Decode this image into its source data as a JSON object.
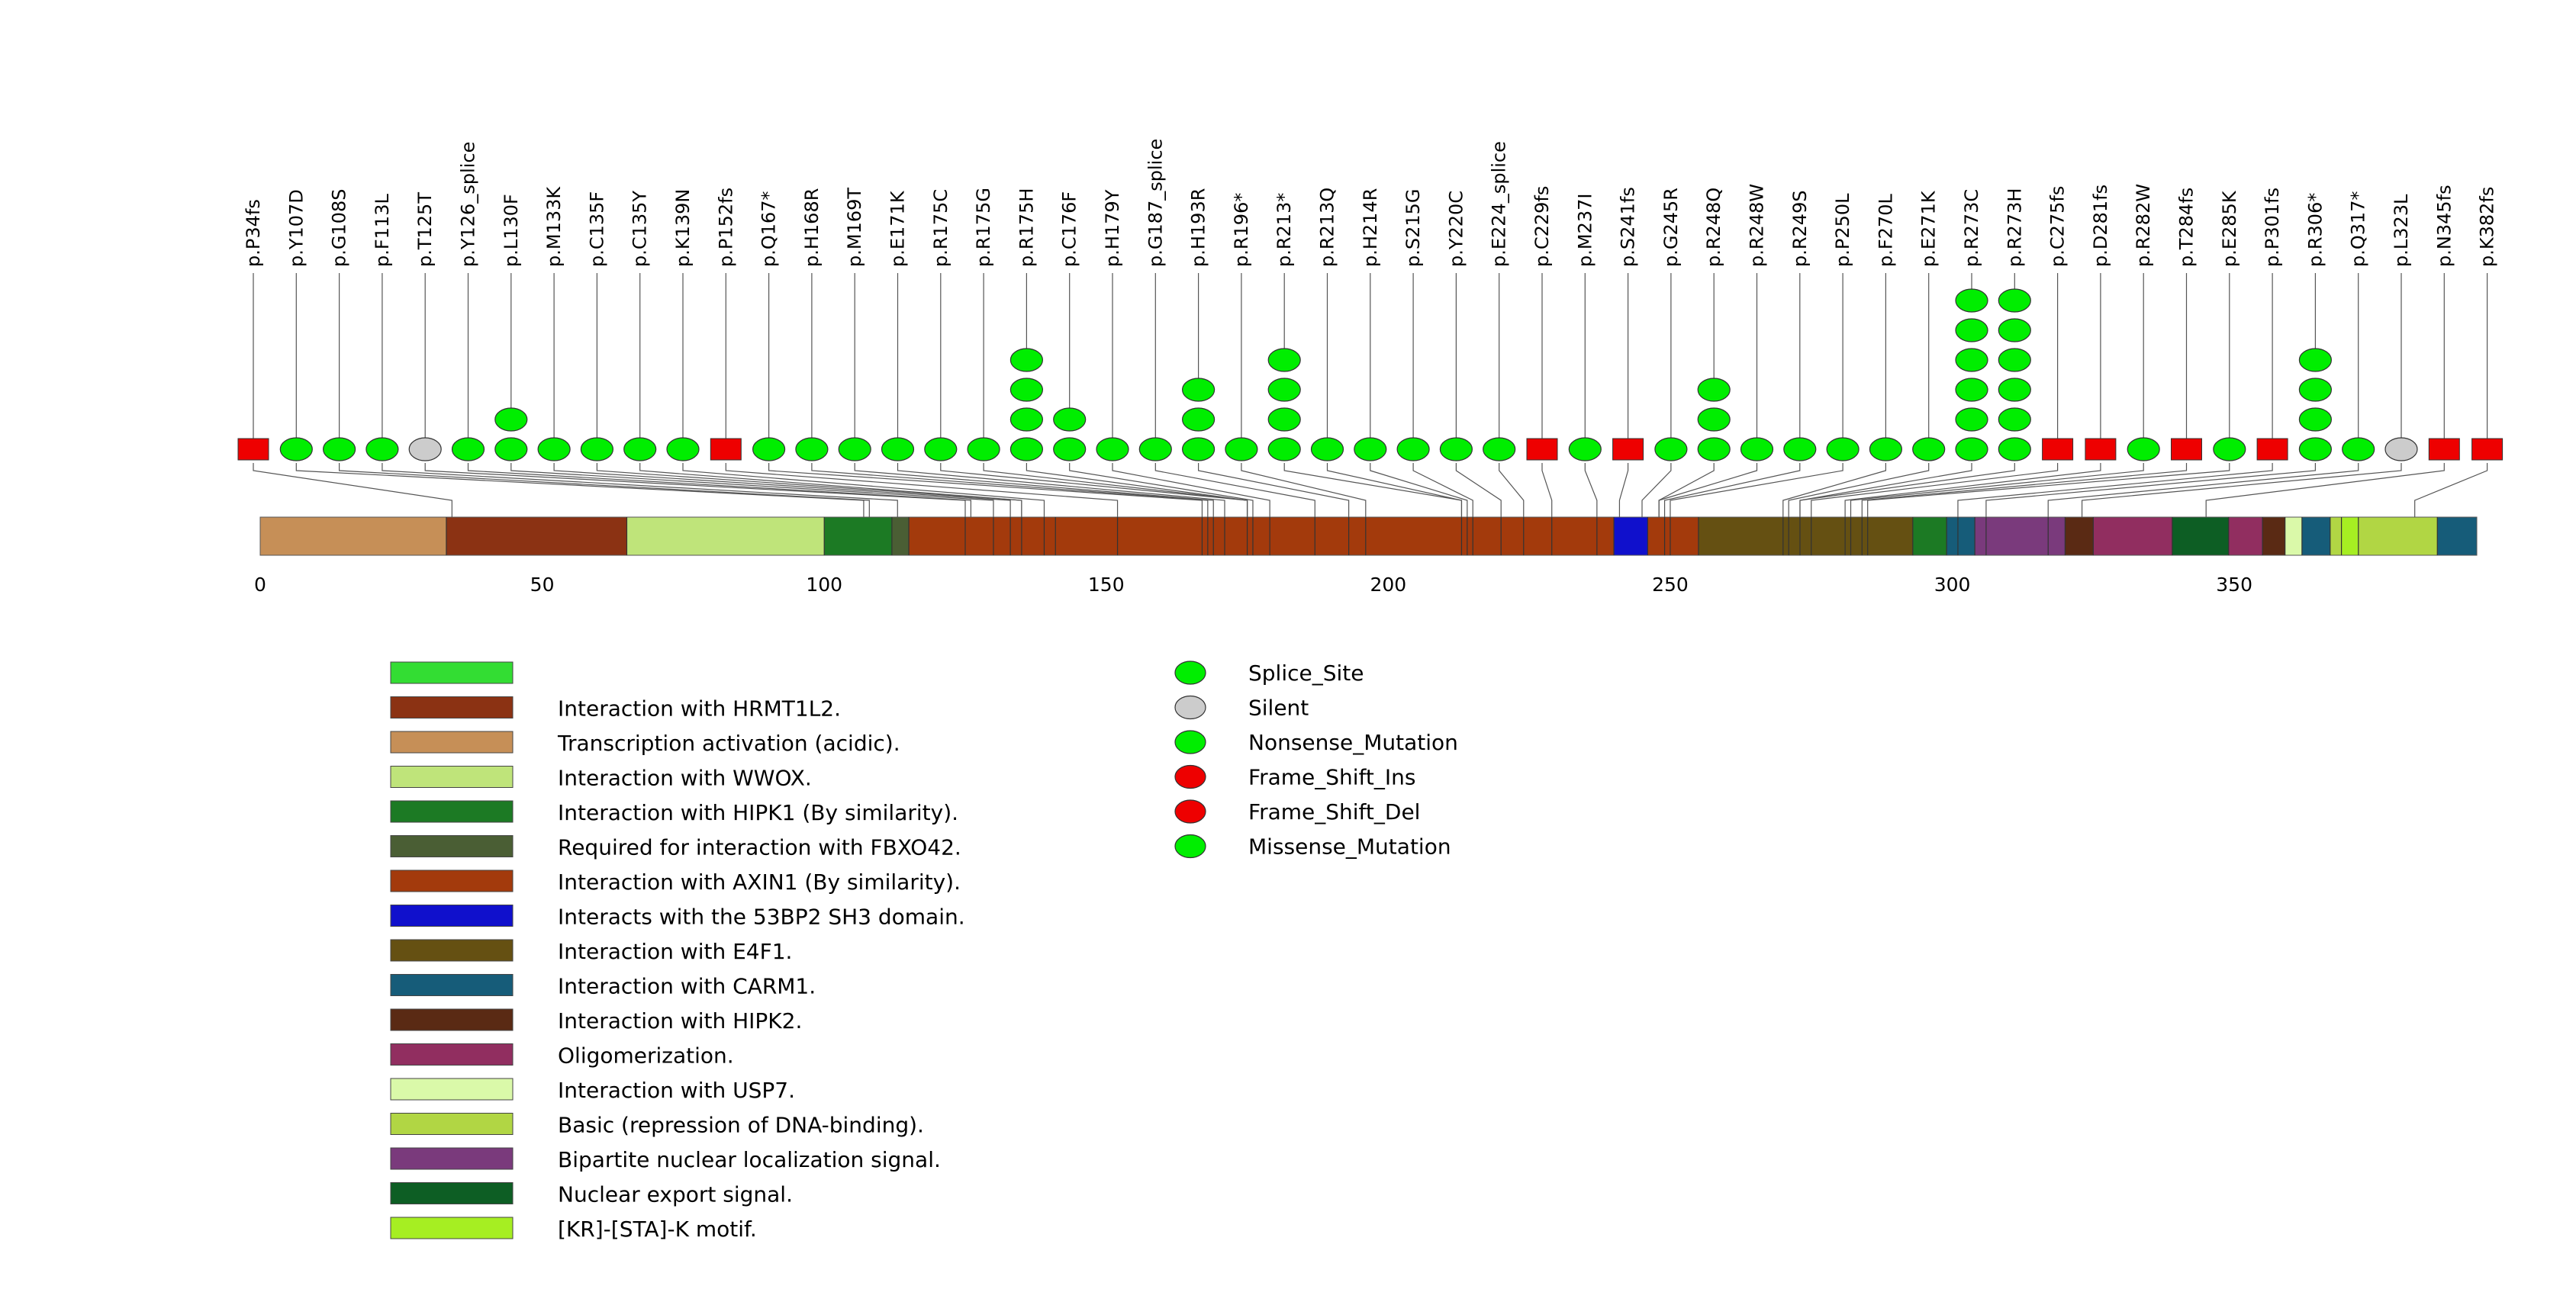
{
  "chart_data": {
    "type": "lollipop",
    "protein_length": 393,
    "xlim": [
      0,
      393
    ],
    "x_ticks": [
      0,
      50,
      100,
      150,
      200,
      250,
      300,
      350
    ],
    "mutation_types": [
      {
        "key": "splice",
        "label": "Splice_Site",
        "shape": "ellipse",
        "color": "#00ee00"
      },
      {
        "key": "silent",
        "label": "Silent",
        "shape": "ellipse",
        "color": "#cccccc"
      },
      {
        "key": "nonsense",
        "label": "Nonsense_Mutation",
        "shape": "ellipse",
        "color": "#00ee00"
      },
      {
        "key": "fs_ins",
        "label": "Frame_Shift_Ins",
        "shape": "ellipse",
        "color": "#ee0000"
      },
      {
        "key": "fs_del",
        "label": "Frame_Shift_Del",
        "shape": "ellipse",
        "color": "#ee0000"
      },
      {
        "key": "missense",
        "label": "Missense_Mutation",
        "shape": "ellipse",
        "color": "#00ee00"
      }
    ],
    "mutations": [
      {
        "label": "p.P34fs",
        "pos": 34,
        "count": 1,
        "type": "fs_del"
      },
      {
        "label": "p.Y107D",
        "pos": 107,
        "count": 1,
        "type": "missense"
      },
      {
        "label": "p.G108S",
        "pos": 108,
        "count": 1,
        "type": "missense"
      },
      {
        "label": "p.F113L",
        "pos": 113,
        "count": 1,
        "type": "missense"
      },
      {
        "label": "p.T125T",
        "pos": 125,
        "count": 1,
        "type": "silent"
      },
      {
        "label": "p.Y126_splice",
        "pos": 126,
        "count": 1,
        "type": "splice"
      },
      {
        "label": "p.L130F",
        "pos": 130,
        "count": 2,
        "type": "missense"
      },
      {
        "label": "p.M133K",
        "pos": 133,
        "count": 1,
        "type": "missense"
      },
      {
        "label": "p.C135F",
        "pos": 135,
        "count": 1,
        "type": "missense"
      },
      {
        "label": "p.C135Y",
        "pos": 135,
        "count": 1,
        "type": "missense"
      },
      {
        "label": "p.K139N",
        "pos": 139,
        "count": 1,
        "type": "missense"
      },
      {
        "label": "p.P152fs",
        "pos": 152,
        "count": 1,
        "type": "fs_del"
      },
      {
        "label": "p.Q167*",
        "pos": 167,
        "count": 1,
        "type": "nonsense"
      },
      {
        "label": "p.H168R",
        "pos": 168,
        "count": 1,
        "type": "missense"
      },
      {
        "label": "p.M169T",
        "pos": 169,
        "count": 1,
        "type": "missense"
      },
      {
        "label": "p.E171K",
        "pos": 171,
        "count": 1,
        "type": "missense"
      },
      {
        "label": "p.R175C",
        "pos": 175,
        "count": 1,
        "type": "missense"
      },
      {
        "label": "p.R175G",
        "pos": 175,
        "count": 1,
        "type": "missense"
      },
      {
        "label": "p.R175H",
        "pos": 175,
        "count": 4,
        "type": "missense"
      },
      {
        "label": "p.C176F",
        "pos": 176,
        "count": 2,
        "type": "missense"
      },
      {
        "label": "p.H179Y",
        "pos": 179,
        "count": 1,
        "type": "missense"
      },
      {
        "label": "p.G187_splice",
        "pos": 187,
        "count": 1,
        "type": "splice"
      },
      {
        "label": "p.H193R",
        "pos": 193,
        "count": 3,
        "type": "missense"
      },
      {
        "label": "p.R196*",
        "pos": 196,
        "count": 1,
        "type": "nonsense"
      },
      {
        "label": "p.R213*",
        "pos": 213,
        "count": 4,
        "type": "nonsense"
      },
      {
        "label": "p.R213Q",
        "pos": 213,
        "count": 1,
        "type": "missense"
      },
      {
        "label": "p.H214R",
        "pos": 214,
        "count": 1,
        "type": "missense"
      },
      {
        "label": "p.S215G",
        "pos": 215,
        "count": 1,
        "type": "missense"
      },
      {
        "label": "p.Y220C",
        "pos": 220,
        "count": 1,
        "type": "missense"
      },
      {
        "label": "p.E224_splice",
        "pos": 224,
        "count": 1,
        "type": "splice"
      },
      {
        "label": "p.C229fs",
        "pos": 229,
        "count": 1,
        "type": "fs_del"
      },
      {
        "label": "p.M237I",
        "pos": 237,
        "count": 1,
        "type": "missense"
      },
      {
        "label": "p.S241fs",
        "pos": 241,
        "count": 1,
        "type": "fs_del"
      },
      {
        "label": "p.G245R",
        "pos": 245,
        "count": 1,
        "type": "missense"
      },
      {
        "label": "p.R248Q",
        "pos": 248,
        "count": 3,
        "type": "missense"
      },
      {
        "label": "p.R248W",
        "pos": 248,
        "count": 1,
        "type": "missense"
      },
      {
        "label": "p.R249S",
        "pos": 249,
        "count": 1,
        "type": "missense"
      },
      {
        "label": "p.P250L",
        "pos": 250,
        "count": 1,
        "type": "missense"
      },
      {
        "label": "p.F270L",
        "pos": 270,
        "count": 1,
        "type": "missense"
      },
      {
        "label": "p.E271K",
        "pos": 271,
        "count": 1,
        "type": "missense"
      },
      {
        "label": "p.R273C",
        "pos": 273,
        "count": 6,
        "type": "missense"
      },
      {
        "label": "p.R273H",
        "pos": 273,
        "count": 6,
        "type": "missense"
      },
      {
        "label": "p.C275fs",
        "pos": 275,
        "count": 1,
        "type": "fs_del"
      },
      {
        "label": "p.D281fs",
        "pos": 281,
        "count": 1,
        "type": "fs_del"
      },
      {
        "label": "p.R282W",
        "pos": 282,
        "count": 1,
        "type": "missense"
      },
      {
        "label": "p.T284fs",
        "pos": 284,
        "count": 1,
        "type": "fs_del"
      },
      {
        "label": "p.E285K",
        "pos": 285,
        "count": 1,
        "type": "missense"
      },
      {
        "label": "p.P301fs",
        "pos": 301,
        "count": 1,
        "type": "fs_del"
      },
      {
        "label": "p.R306*",
        "pos": 306,
        "count": 4,
        "type": "nonsense"
      },
      {
        "label": "p.Q317*",
        "pos": 317,
        "count": 1,
        "type": "nonsense"
      },
      {
        "label": "p.L323L",
        "pos": 323,
        "count": 1,
        "type": "silent"
      },
      {
        "label": "p.N345fs",
        "pos": 345,
        "count": 1,
        "type": "fs_del"
      },
      {
        "label": "p.K382fs",
        "pos": 382,
        "count": 1,
        "type": "fs_del"
      }
    ],
    "domains": [
      {
        "label": "",
        "color": "#33dd33",
        "ranges": []
      },
      {
        "label": "Interaction with HRMT1L2.",
        "color": "#8b3213",
        "ranges": [
          [
            33,
            65
          ]
        ]
      },
      {
        "label": "Transcription activation (acidic).",
        "color": "#c68f57",
        "ranges": [
          [
            0,
            33
          ]
        ]
      },
      {
        "label": "Interaction with WWOX.",
        "color": "#bfe47a",
        "ranges": [
          [
            65,
            100
          ]
        ]
      },
      {
        "label": "Interaction with HIPK1 (By similarity).",
        "color": "#1c7a24",
        "ranges": [
          [
            100,
            112
          ],
          [
            293,
            299
          ]
        ]
      },
      {
        "label": "Required for interaction with FBXO42.",
        "color": "#4a5e34",
        "ranges": [
          [
            112,
            115
          ]
        ]
      },
      {
        "label": "Interaction with AXIN1 (By similarity).",
        "color": "#a33a0c",
        "ranges": [
          [
            115,
            240
          ],
          [
            246,
            255
          ]
        ]
      },
      {
        "label": "Interacts with the 53BP2 SH3 domain.",
        "color": "#1010cc",
        "ranges": [
          [
            240,
            246
          ]
        ]
      },
      {
        "label": "Interaction with E4F1.",
        "color": "#655012",
        "ranges": [
          [
            255,
            293
          ]
        ]
      },
      {
        "label": "Interaction with CARM1.",
        "color": "#165c79",
        "ranges": [
          [
            299,
            304
          ],
          [
            362,
            367
          ],
          [
            386,
            393
          ]
        ]
      },
      {
        "label": "Interaction with HIPK2.",
        "color": "#5a2a14",
        "ranges": [
          [
            320,
            325
          ],
          [
            355,
            359
          ]
        ]
      },
      {
        "label": "Oligomerization.",
        "color": "#912e60",
        "ranges": [
          [
            325,
            339
          ],
          [
            349,
            355
          ]
        ]
      },
      {
        "label": "Interaction with USP7.",
        "color": "#daf9a9",
        "ranges": [
          [
            359,
            362
          ]
        ]
      },
      {
        "label": "Basic (repression of DNA-binding).",
        "color": "#b1d644",
        "ranges": [
          [
            367,
            386
          ]
        ]
      },
      {
        "label": "Bipartite nuclear localization signal.",
        "color": "#7a3a7c",
        "ranges": [
          [
            304,
            320
          ]
        ]
      },
      {
        "label": "Nuclear export signal.",
        "color": "#0d5e24",
        "ranges": [
          [
            339,
            349
          ]
        ]
      },
      {
        "label": "[KR]-[STA]-K motif.",
        "color": "#a6ee22",
        "ranges": [
          [
            369,
            372
          ]
        ]
      }
    ],
    "boundaries": [
      33,
      65,
      100,
      112,
      115,
      125,
      130,
      133,
      135,
      139,
      141,
      152,
      167,
      168,
      169,
      171,
      175,
      176,
      179,
      187,
      193,
      196,
      213,
      214,
      215,
      220,
      224,
      229,
      237,
      240,
      246,
      249,
      250,
      255,
      270,
      271,
      273,
      275,
      281,
      282,
      284,
      285,
      293,
      299,
      301,
      304,
      306,
      317,
      320,
      325,
      339,
      349,
      355,
      359,
      362,
      367,
      369,
      372,
      386
    ]
  }
}
